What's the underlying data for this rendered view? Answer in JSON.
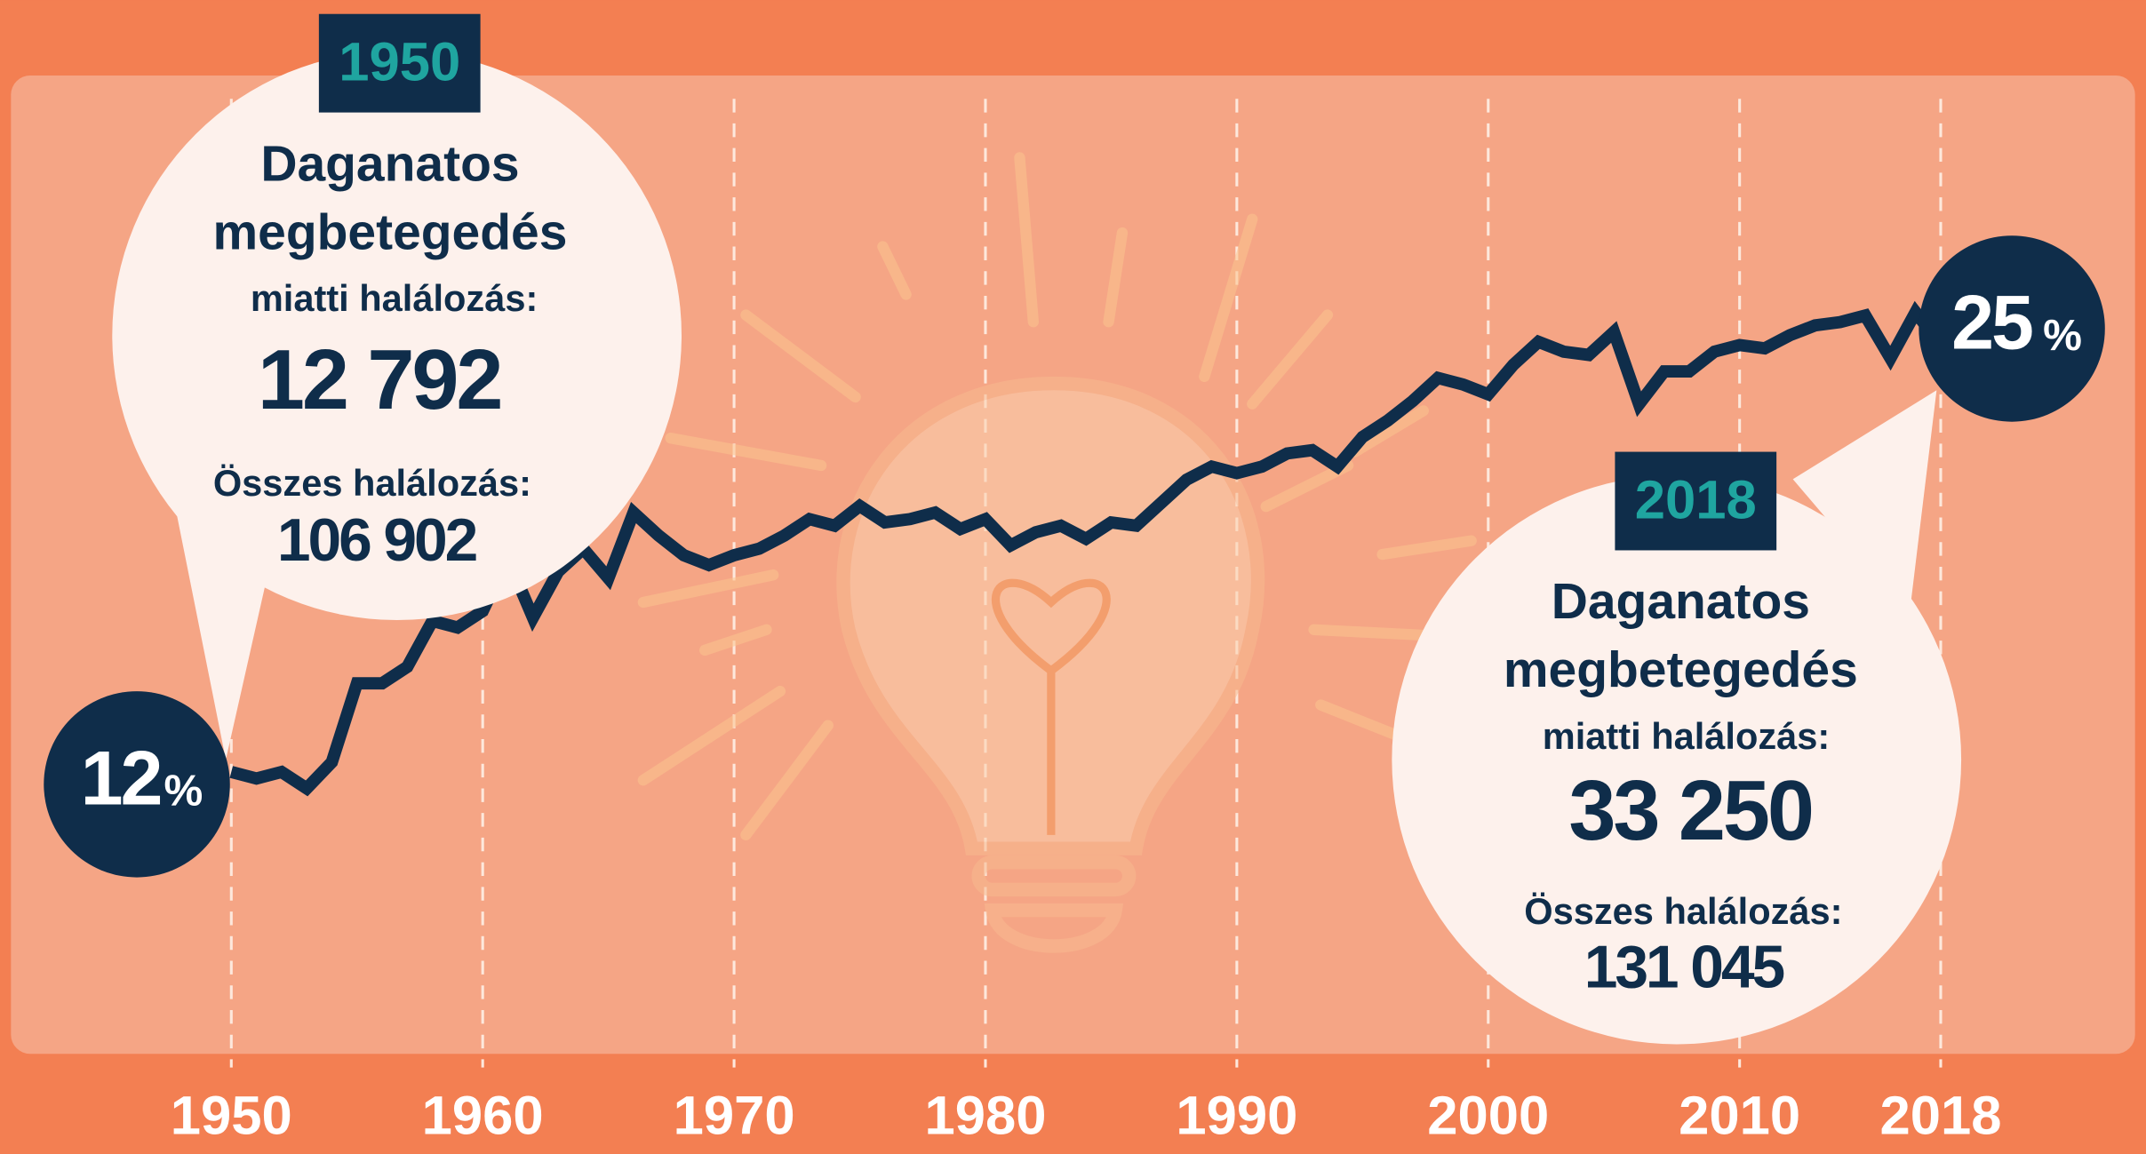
{
  "chart_data": {
    "type": "line",
    "x": [
      1950,
      1951,
      1952,
      1953,
      1954,
      1955,
      1956,
      1957,
      1958,
      1959,
      1960,
      1961,
      1962,
      1963,
      1964,
      1965,
      1966,
      1967,
      1968,
      1969,
      1970,
      1971,
      1972,
      1973,
      1974,
      1975,
      1976,
      1977,
      1978,
      1979,
      1980,
      1981,
      1982,
      1983,
      1984,
      1985,
      1986,
      1987,
      1988,
      1989,
      1990,
      1991,
      1992,
      1993,
      1994,
      1995,
      1996,
      1997,
      1998,
      1999,
      2000,
      2001,
      2002,
      2003,
      2004,
      2005,
      2006,
      2007,
      2008,
      2009,
      2010,
      2011,
      2012,
      2013,
      2014,
      2015,
      2016,
      2017,
      2018
    ],
    "series": [
      {
        "color": "#0f2d4a",
        "values": [
          12,
          11.8,
          12,
          11.5,
          12.3,
          14.7,
          14.7,
          15.2,
          16.6,
          16.4,
          16.9,
          18.5,
          16.7,
          18.1,
          18.8,
          17.9,
          19.9,
          19.2,
          18.6,
          18.3,
          18.6,
          18.8,
          19.2,
          19.7,
          19.5,
          20.1,
          19.6,
          19.7,
          19.9,
          19.4,
          19.7,
          18.9,
          19.3,
          19.5,
          19.1,
          19.6,
          19.5,
          20.2,
          20.9,
          21.3,
          21.1,
          21.3,
          21.7,
          21.8,
          21.3,
          22.2,
          22.7,
          23.3,
          24.0,
          23.8,
          23.5,
          24.4,
          25.1,
          24.8,
          24.7,
          25.4,
          23.2,
          24.2,
          24.2,
          24.8,
          25.0,
          24.9,
          25.3,
          25.6,
          25.7,
          25.9,
          24.6,
          26.0,
          25
        ]
      }
    ],
    "xlim": [
      1950,
      2018
    ],
    "xticks": [
      1950,
      1960,
      1970,
      1980,
      1990,
      2000,
      2010,
      2018
    ],
    "start_value": {
      "number": "12",
      "unit": "%"
    },
    "end_value": {
      "number": "25",
      "unit": "%"
    },
    "annotations": [
      {
        "year": "1950",
        "line1": "Daganatos",
        "line2": "megbetegedés",
        "line3": "miatti halálozás:",
        "cancer_deaths": "12 792",
        "total_label": "Összes halálozás:",
        "total_deaths": "106 902"
      },
      {
        "year": "2018",
        "line1": "Daganatos",
        "line2": "megbetegedés",
        "line3": "miatti halálozás:",
        "cancer_deaths": "33 250",
        "total_label": "Összes halálozás:",
        "total_deaths": "131 045"
      }
    ]
  }
}
